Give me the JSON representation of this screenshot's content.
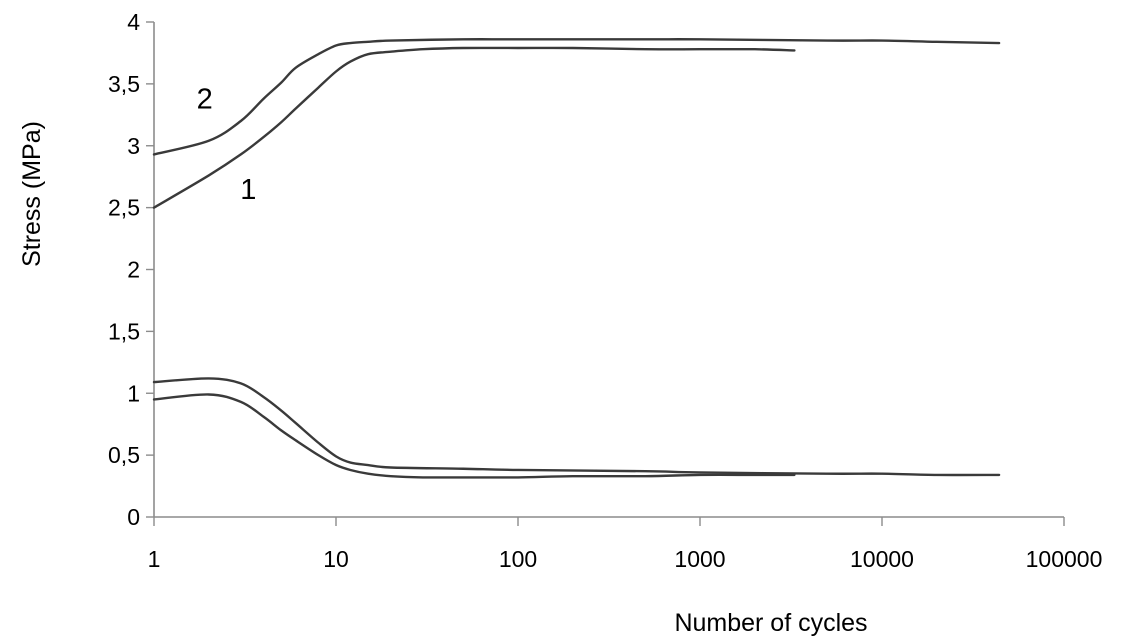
{
  "chart_data": {
    "type": "line",
    "xlabel": "Number of cycles",
    "ylabel": "Stress (MPa)",
    "x_scale": "log",
    "xlim": [
      1,
      100000
    ],
    "ylim": [
      0,
      4
    ],
    "x_ticks": [
      1,
      10,
      100,
      1000,
      10000,
      100000
    ],
    "x_tick_labels": [
      "1",
      "10",
      "100",
      "1000",
      "10000",
      "100000"
    ],
    "y_ticks": [
      0,
      0.5,
      1,
      1.5,
      2,
      2.5,
      3,
      3.5,
      4
    ],
    "y_tick_labels": [
      "0",
      "0,5",
      "1",
      "1,5",
      "2",
      "2,5",
      "3",
      "3,5",
      "4"
    ],
    "grid": false,
    "annotations": [
      {
        "text": "2",
        "x": 1.9,
        "y": 3.3
      },
      {
        "text": "1",
        "x": 3.3,
        "y": 2.57
      }
    ],
    "series": [
      {
        "x": [
          1,
          2,
          3,
          4,
          5,
          6,
          8,
          10,
          12,
          15,
          20,
          30,
          50,
          100,
          200,
          500,
          1000,
          2000,
          3300
        ],
        "y": [
          2.5,
          2.76,
          2.93,
          3.07,
          3.19,
          3.3,
          3.47,
          3.6,
          3.68,
          3.74,
          3.76,
          3.78,
          3.79,
          3.79,
          3.79,
          3.78,
          3.78,
          3.78,
          3.77
        ]
      },
      {
        "x": [
          1,
          2,
          3,
          4,
          5,
          6,
          8,
          10,
          12,
          15,
          20,
          30,
          50,
          100,
          200,
          500,
          1000,
          2000,
          3300
        ],
        "y": [
          0.95,
          0.99,
          0.93,
          0.81,
          0.7,
          0.62,
          0.5,
          0.42,
          0.38,
          0.35,
          0.33,
          0.32,
          0.32,
          0.32,
          0.33,
          0.33,
          0.34,
          0.34,
          0.34
        ]
      },
      {
        "x": [
          1,
          2,
          3,
          4,
          5,
          6,
          8,
          10,
          12,
          15,
          20,
          50,
          100,
          500,
          1000,
          5000,
          10000,
          20000,
          44000
        ],
        "y": [
          2.93,
          3.04,
          3.2,
          3.38,
          3.51,
          3.63,
          3.74,
          3.81,
          3.83,
          3.84,
          3.85,
          3.86,
          3.86,
          3.86,
          3.86,
          3.85,
          3.85,
          3.84,
          3.83
        ]
      },
      {
        "x": [
          1,
          2,
          3,
          4,
          5,
          6,
          8,
          10,
          12,
          15,
          20,
          50,
          100,
          500,
          1000,
          5000,
          10000,
          20000,
          44000
        ],
        "y": [
          1.09,
          1.12,
          1.08,
          0.97,
          0.86,
          0.76,
          0.6,
          0.49,
          0.44,
          0.42,
          0.4,
          0.39,
          0.38,
          0.37,
          0.36,
          0.35,
          0.35,
          0.34,
          0.34
        ]
      }
    ]
  }
}
